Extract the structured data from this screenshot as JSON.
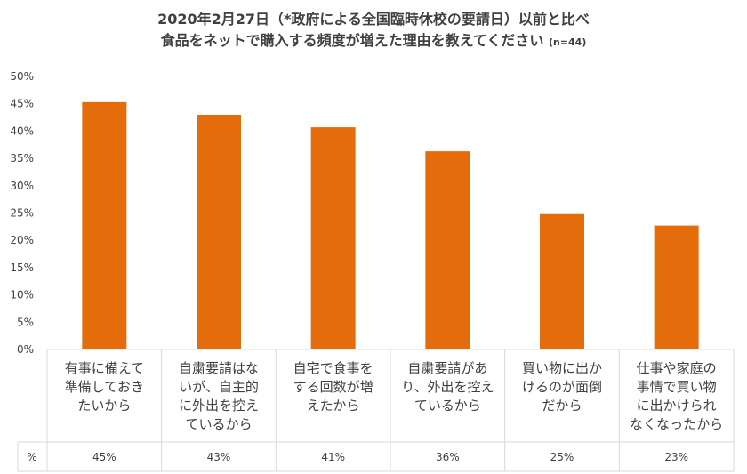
{
  "chart_data": {
    "type": "bar",
    "title_line1": "2020年2月27日（*政府による全国臨時休校の要請日）以前と比べ",
    "title_line2": "食品をネットで購入する頻度が増えた理由を教えてください",
    "sample": "(n=44)",
    "categories": [
      [
        "有事に備えて",
        "準備しておき",
        "たいから"
      ],
      [
        "自粛要請はな",
        "いが、自主的",
        "に外出を控え",
        "ているから"
      ],
      [
        "自宅で食事を",
        "する回数が増",
        "えたから"
      ],
      [
        "自粛要請があ",
        "り、外出を控え",
        "ているから"
      ],
      [
        "買い物に出か",
        "けるのが面倒",
        "だから"
      ],
      [
        "仕事や家庭の",
        "事情で買い物",
        "に出かけられ",
        "なくなったから"
      ]
    ],
    "values": [
      45.3,
      43.0,
      40.7,
      36.3,
      24.8,
      22.7
    ],
    "table_label": "%",
    "table_values": [
      "45%",
      "43%",
      "41%",
      "36%",
      "25%",
      "23%"
    ],
    "yticks": [
      "0%",
      "5%",
      "10%",
      "15%",
      "20%",
      "25%",
      "30%",
      "35%",
      "40%",
      "45%",
      "50%"
    ],
    "ylim": [
      0,
      50
    ],
    "bar_color": "#E46C0A",
    "grid": false
  }
}
